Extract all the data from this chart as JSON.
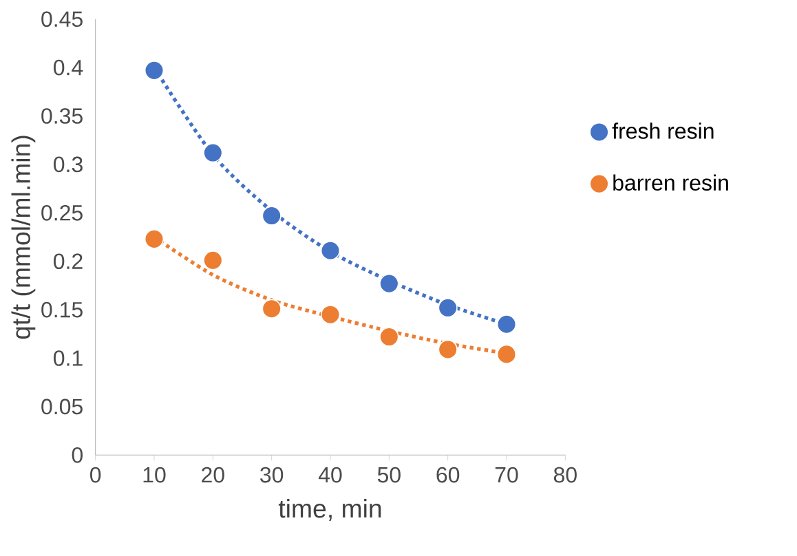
{
  "chart_data": {
    "type": "scatter",
    "xlabel": "time, min",
    "ylabel": "qt/t (mmol/ml.min)",
    "xlim": [
      0,
      80
    ],
    "xticks": [
      0,
      10,
      20,
      30,
      40,
      50,
      60,
      70,
      80
    ],
    "ylim": [
      0,
      0.45
    ],
    "yticks": [
      0,
      0.05,
      0.1,
      0.15,
      0.2,
      0.25,
      0.3,
      0.35,
      0.4,
      0.45
    ],
    "legend": "right",
    "grid": false,
    "marker": "circle",
    "series": [
      {
        "name": "fresh resin",
        "color": "#4472c4",
        "x": [
          10,
          20,
          30,
          40,
          50,
          60,
          70
        ],
        "values": [
          0.397,
          0.312,
          0.247,
          0.211,
          0.177,
          0.152,
          0.135
        ]
      },
      {
        "name": "barren resin",
        "color": "#ed7d31",
        "x": [
          10,
          20,
          30,
          40,
          50,
          60,
          70
        ],
        "values": [
          0.223,
          0.201,
          0.151,
          0.145,
          0.122,
          0.109,
          0.104
        ]
      },
      {
        "type": "line",
        "marker": "none",
        "line_style": "dotted",
        "color": "#4472c4",
        "x": [
          10,
          20,
          30,
          40,
          50,
          60,
          70
        ],
        "values": [
          0.4,
          0.31,
          0.252,
          0.21,
          0.18,
          0.155,
          0.135
        ]
      },
      {
        "type": "line",
        "marker": "none",
        "line_style": "dotted",
        "color": "#ed7d31",
        "x": [
          10,
          20,
          30,
          40,
          50,
          60,
          70
        ],
        "values": [
          0.225,
          0.186,
          0.16,
          0.143,
          0.128,
          0.115,
          0.105
        ]
      }
    ]
  }
}
